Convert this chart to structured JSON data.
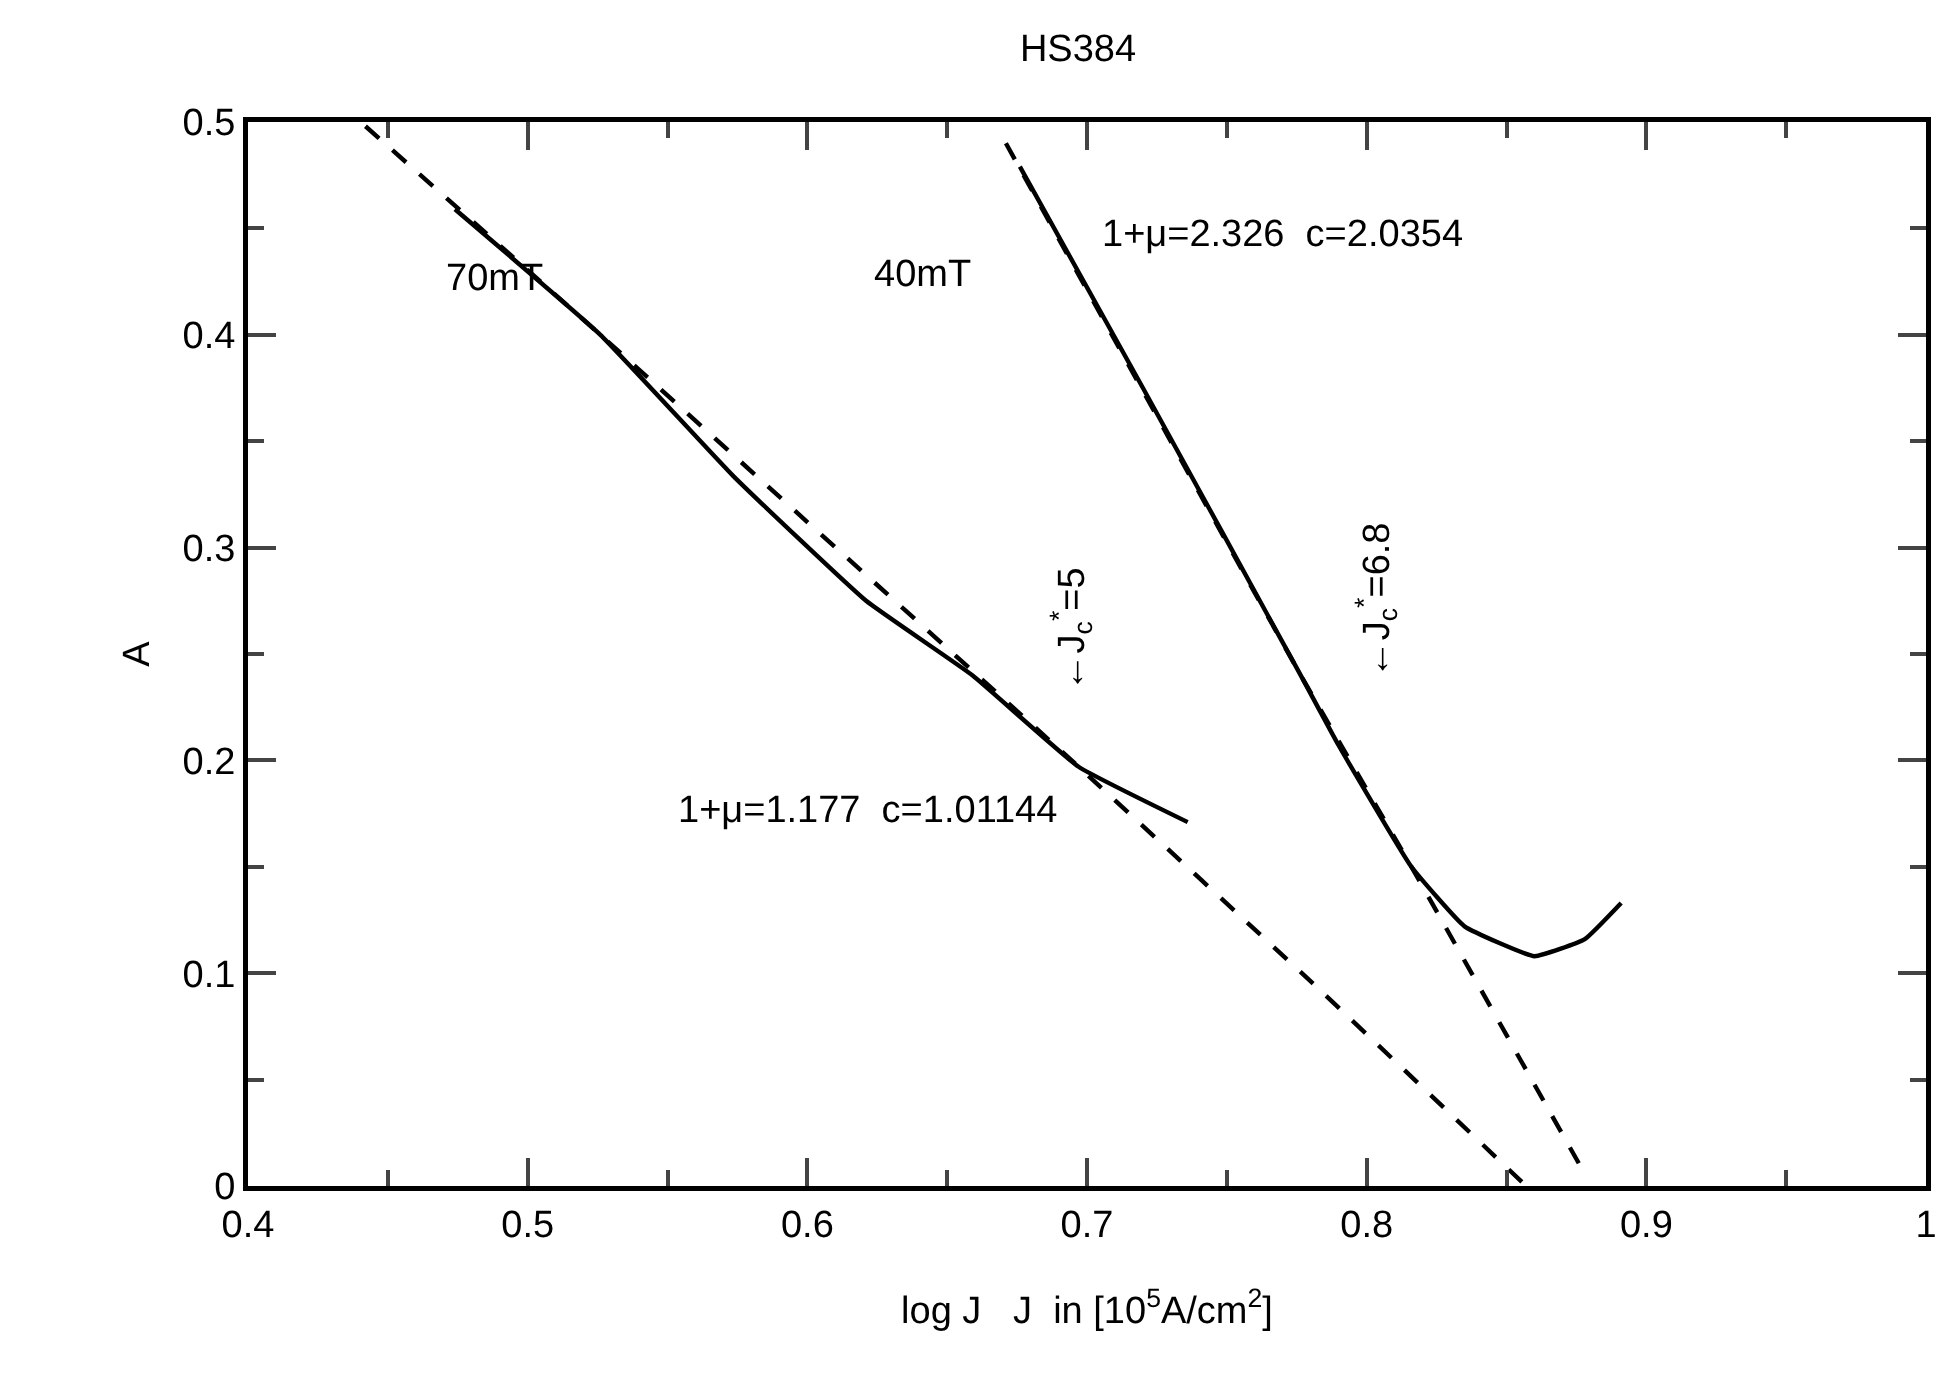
{
  "chart_data": {
    "type": "line",
    "title": "HS384",
    "xlabel": "log J   J  in [10$^{5}$A/cm$^{2}$]",
    "ylabel": "A",
    "xlim": [
      0.4,
      1
    ],
    "xticks": [
      0.4,
      0.5,
      0.6,
      0.7,
      0.8,
      0.9,
      1
    ],
    "ylim": [
      0,
      0.5
    ],
    "yticks": [
      0,
      0.1,
      0.2,
      0.3,
      0.4,
      0.5
    ],
    "series": [
      {
        "name": "70mT",
        "color": "#000000",
        "line_style": "solid",
        "x": [
          0.474,
          0.526,
          0.574,
          0.621,
          0.659,
          0.697,
          0.736
        ],
        "values": [
          0.459,
          0.4,
          0.333,
          0.275,
          0.24,
          0.197,
          0.171
        ]
      },
      {
        "name": "40mT",
        "color": "#000000",
        "line_style": "solid",
        "x": [
          0.676,
          0.72,
          0.776,
          0.79,
          0.816,
          0.835,
          0.86,
          0.878,
          0.891
        ],
        "values": [
          0.479,
          0.375,
          0.241,
          0.207,
          0.15,
          0.122,
          0.108,
          0.116,
          0.133
        ]
      },
      {
        "color": "#000000",
        "line_style": "dashed",
        "x": [
          0.442,
          0.526,
          0.6,
          0.697,
          0.785,
          0.857
        ],
        "values": [
          0.498,
          0.4,
          0.312,
          0.197,
          0.09,
          0
        ]
      },
      {
        "color": "#000000",
        "line_style": "dashed",
        "x": [
          0.671,
          0.776,
          0.816,
          0.877
        ],
        "values": [
          0.49,
          0.241,
          0.15,
          0.008
        ]
      }
    ],
    "annotations": [
      "1+μ=2.326  c=2.0354",
      "1+μ=1.177  c=1.01144",
      "←J$_{c}$$^{*}$=5",
      "←J$_{c}$$^{*}$=6.8"
    ]
  }
}
